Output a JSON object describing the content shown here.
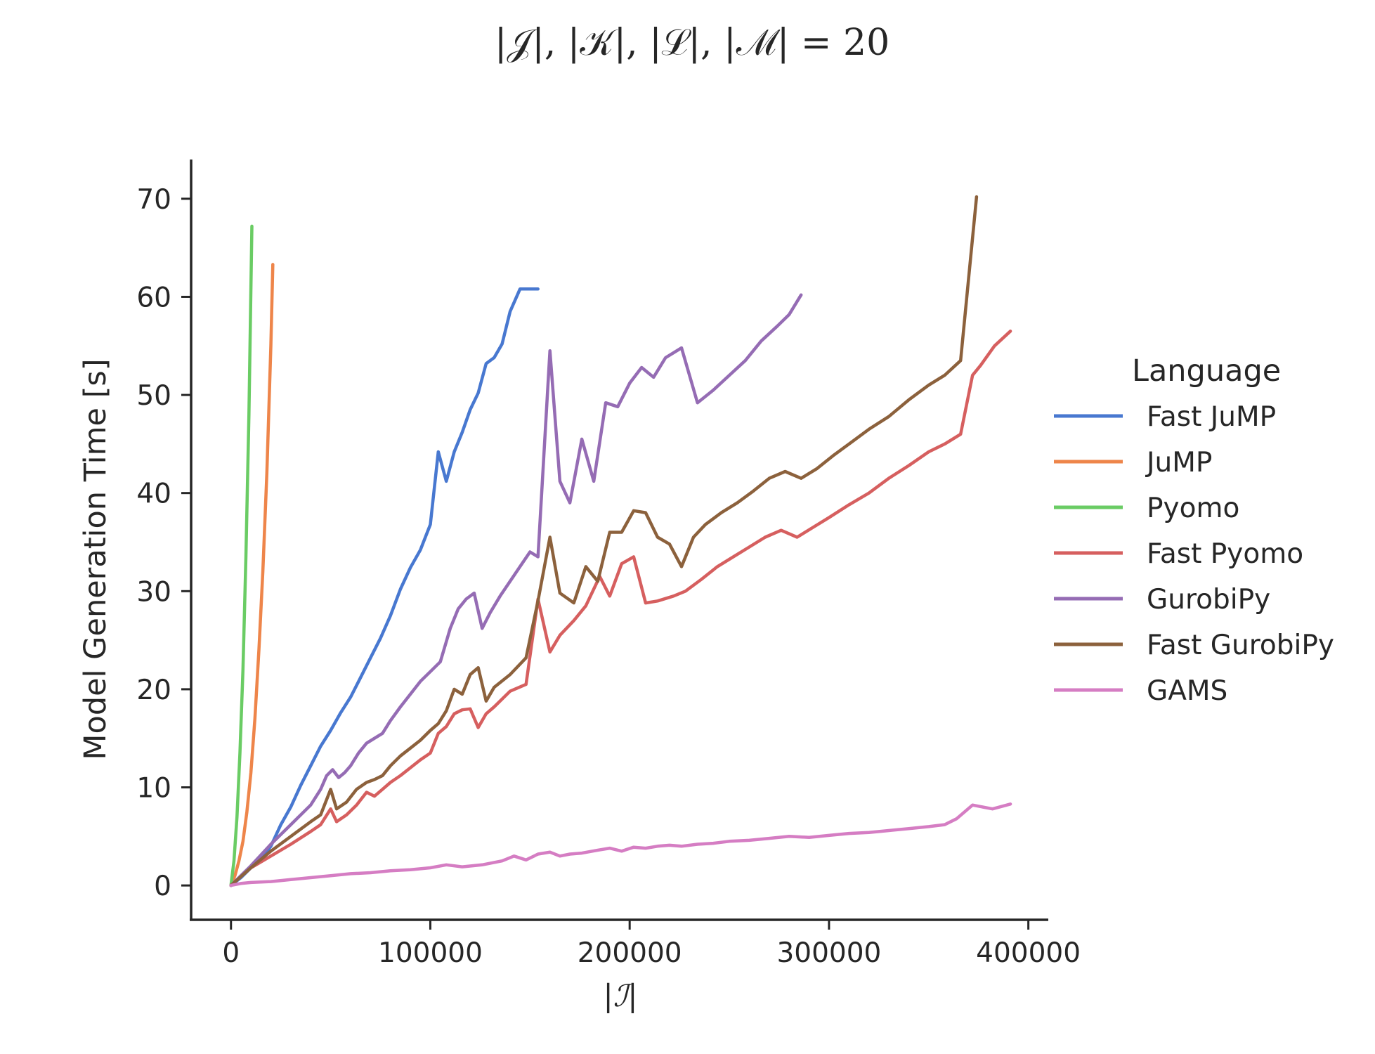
{
  "chart_data": {
    "type": "line",
    "title": "|𝒥|, |𝒦|, |ℒ|, |ℳ| = 20",
    "xlabel": "|ℐ|",
    "ylabel": "Model Generation Time [s]",
    "xlim": [
      -20000,
      410000
    ],
    "ylim": [
      -3.5,
      74
    ],
    "xticks": [
      0,
      100000,
      200000,
      300000,
      400000
    ],
    "xtick_labels": [
      "0",
      "100000",
      "200000",
      "300000",
      "400000"
    ],
    "yticks": [
      0,
      10,
      20,
      30,
      40,
      50,
      60,
      70
    ],
    "ytick_labels": [
      "0",
      "10",
      "20",
      "30",
      "40",
      "50",
      "60",
      "70"
    ],
    "grid": false,
    "legend": {
      "title": "Language",
      "placement": "center-right"
    },
    "series": [
      {
        "name": "Fast JuMP",
        "color": "#4878d0",
        "x": [
          0,
          5000,
          10000,
          15000,
          20000,
          25000,
          30000,
          35000,
          40000,
          45000,
          50000,
          55000,
          60000,
          65000,
          70000,
          75000,
          80000,
          85000,
          90000,
          95000,
          100000,
          104000,
          108000,
          112000,
          116000,
          120000,
          124000,
          128000,
          132000,
          136000,
          140000,
          145000,
          150000,
          154000
        ],
        "y": [
          0,
          0.8,
          1.8,
          2.7,
          4.0,
          6.2,
          8.0,
          10.2,
          12.2,
          14.2,
          15.8,
          17.6,
          19.2,
          21.2,
          23.2,
          25.2,
          27.5,
          30.2,
          32.4,
          34.2,
          36.8,
          44.2,
          41.2,
          44.2,
          46.2,
          48.5,
          50.2,
          53.2,
          53.8,
          55.2,
          58.5,
          60.8,
          60.8,
          60.8
        ]
      },
      {
        "name": "JuMP",
        "color": "#ee854a",
        "x": [
          0,
          2000,
          4000,
          6000,
          8000,
          10000,
          12000,
          14000,
          16000,
          18000,
          20000,
          21000
        ],
        "y": [
          0,
          1.0,
          2.5,
          4.5,
          7.5,
          11.5,
          17.0,
          24.0,
          32.0,
          42.0,
          55.0,
          63.3
        ]
      },
      {
        "name": "Pyomo",
        "color": "#6acc64",
        "x": [
          0,
          1500,
          3000,
          4500,
          6000,
          7500,
          9000,
          10500
        ],
        "y": [
          0,
          2.5,
          7.0,
          13.5,
          22.0,
          33.5,
          48.0,
          67.2
        ]
      },
      {
        "name": "Fast Pyomo",
        "color": "#d65f5f",
        "x": [
          0,
          10000,
          20000,
          30000,
          40000,
          45000,
          50000,
          53000,
          58000,
          63000,
          68000,
          72000,
          76000,
          80000,
          85000,
          90000,
          95000,
          100000,
          104000,
          108000,
          112000,
          116000,
          120000,
          124000,
          128000,
          132000,
          140000,
          148000,
          154000,
          160000,
          165000,
          172000,
          178000,
          185000,
          190000,
          196000,
          202000,
          208000,
          214000,
          222000,
          228000,
          236000,
          244000,
          252000,
          260000,
          268000,
          276000,
          284000,
          292000,
          300000,
          310000,
          320000,
          330000,
          340000,
          350000,
          358000,
          366000,
          372000,
          376000,
          383000,
          391000
        ],
        "y": [
          0,
          1.8,
          3.0,
          4.2,
          5.5,
          6.2,
          7.8,
          6.5,
          7.2,
          8.2,
          9.5,
          9.1,
          9.8,
          10.5,
          11.2,
          12.0,
          12.8,
          13.5,
          15.5,
          16.2,
          17.5,
          17.9,
          18.0,
          16.1,
          17.5,
          18.2,
          19.8,
          20.5,
          29.2,
          23.8,
          25.5,
          27.0,
          28.5,
          31.5,
          29.5,
          32.8,
          33.5,
          28.8,
          29.0,
          29.5,
          30.0,
          31.2,
          32.5,
          33.5,
          34.5,
          35.5,
          36.2,
          35.5,
          36.5,
          37.5,
          38.8,
          40.0,
          41.5,
          42.8,
          44.2,
          45.0,
          46.0,
          52.0,
          53.0,
          55.0,
          56.5
        ]
      },
      {
        "name": "GurobiPy",
        "color": "#956cb4",
        "x": [
          0,
          10000,
          20000,
          30000,
          40000,
          45000,
          48000,
          51000,
          54000,
          57000,
          60000,
          64000,
          68000,
          72000,
          76000,
          80000,
          85000,
          90000,
          95000,
          100000,
          105000,
          110000,
          114000,
          118000,
          122000,
          126000,
          130000,
          135000,
          140000,
          145000,
          150000,
          154000,
          160000,
          165000,
          170000,
          176000,
          182000,
          188000,
          194000,
          200000,
          206000,
          212000,
          218000,
          226000,
          234000,
          242000,
          250000,
          258000,
          266000,
          274000,
          280000,
          286000
        ],
        "y": [
          0,
          2.0,
          4.2,
          6.2,
          8.2,
          9.8,
          11.2,
          11.8,
          11.0,
          11.5,
          12.2,
          13.5,
          14.5,
          15.0,
          15.5,
          16.8,
          18.2,
          19.5,
          20.8,
          21.8,
          22.8,
          26.2,
          28.2,
          29.2,
          29.8,
          26.2,
          27.8,
          29.5,
          31.0,
          32.5,
          34.0,
          33.5,
          54.5,
          41.2,
          39.0,
          45.5,
          41.2,
          49.2,
          48.8,
          51.2,
          52.8,
          51.8,
          53.8,
          54.8,
          49.2,
          50.5,
          52.0,
          53.5,
          55.5,
          57.0,
          58.2,
          60.2
        ]
      },
      {
        "name": "Fast GurobiPy",
        "color": "#8c613c",
        "x": [
          0,
          10000,
          20000,
          30000,
          40000,
          45000,
          50000,
          53000,
          58000,
          63000,
          68000,
          72000,
          76000,
          80000,
          85000,
          90000,
          95000,
          100000,
          104000,
          108000,
          112000,
          116000,
          120000,
          124000,
          128000,
          132000,
          140000,
          148000,
          154000,
          160000,
          165000,
          172000,
          178000,
          184000,
          190000,
          196000,
          202000,
          208000,
          214000,
          220000,
          226000,
          232000,
          238000,
          246000,
          254000,
          262000,
          270000,
          278000,
          286000,
          294000,
          302000,
          310000,
          320000,
          330000,
          340000,
          350000,
          358000,
          366000,
          374000
        ],
        "y": [
          0,
          1.8,
          3.5,
          5.0,
          6.5,
          7.2,
          9.8,
          7.8,
          8.5,
          9.8,
          10.5,
          10.8,
          11.2,
          12.2,
          13.2,
          14.0,
          14.8,
          15.8,
          16.5,
          17.8,
          20.0,
          19.5,
          21.5,
          22.2,
          18.8,
          20.2,
          21.5,
          23.2,
          29.0,
          35.5,
          29.8,
          28.8,
          32.5,
          31.0,
          36.0,
          36.0,
          38.2,
          38.0,
          35.5,
          34.8,
          32.5,
          35.5,
          36.8,
          38.0,
          39.0,
          40.2,
          41.5,
          42.2,
          41.5,
          42.5,
          43.8,
          45.0,
          46.5,
          47.8,
          49.5,
          51.0,
          52.0,
          53.5,
          70.2
        ]
      },
      {
        "name": "GAMS",
        "color": "#d57dc3",
        "x": [
          0,
          5000,
          10000,
          20000,
          30000,
          40000,
          45000,
          50000,
          60000,
          70000,
          80000,
          90000,
          100000,
          108000,
          112000,
          116000,
          126000,
          136000,
          142000,
          148000,
          154000,
          160000,
          165000,
          170000,
          176000,
          184000,
          190000,
          196000,
          202000,
          208000,
          214000,
          220000,
          226000,
          234000,
          242000,
          250000,
          260000,
          270000,
          280000,
          290000,
          300000,
          310000,
          320000,
          330000,
          340000,
          350000,
          358000,
          364000,
          372000,
          382000,
          391000
        ],
        "y": [
          0,
          0.2,
          0.3,
          0.4,
          0.6,
          0.8,
          0.9,
          1.0,
          1.2,
          1.3,
          1.5,
          1.6,
          1.8,
          2.1,
          2.0,
          1.9,
          2.1,
          2.5,
          3.0,
          2.6,
          3.2,
          3.4,
          3.0,
          3.2,
          3.3,
          3.6,
          3.8,
          3.5,
          3.9,
          3.8,
          4.0,
          4.1,
          4.0,
          4.2,
          4.3,
          4.5,
          4.6,
          4.8,
          5.0,
          4.9,
          5.1,
          5.3,
          5.4,
          5.6,
          5.8,
          6.0,
          6.2,
          6.8,
          8.2,
          7.8,
          8.3
        ]
      }
    ]
  }
}
